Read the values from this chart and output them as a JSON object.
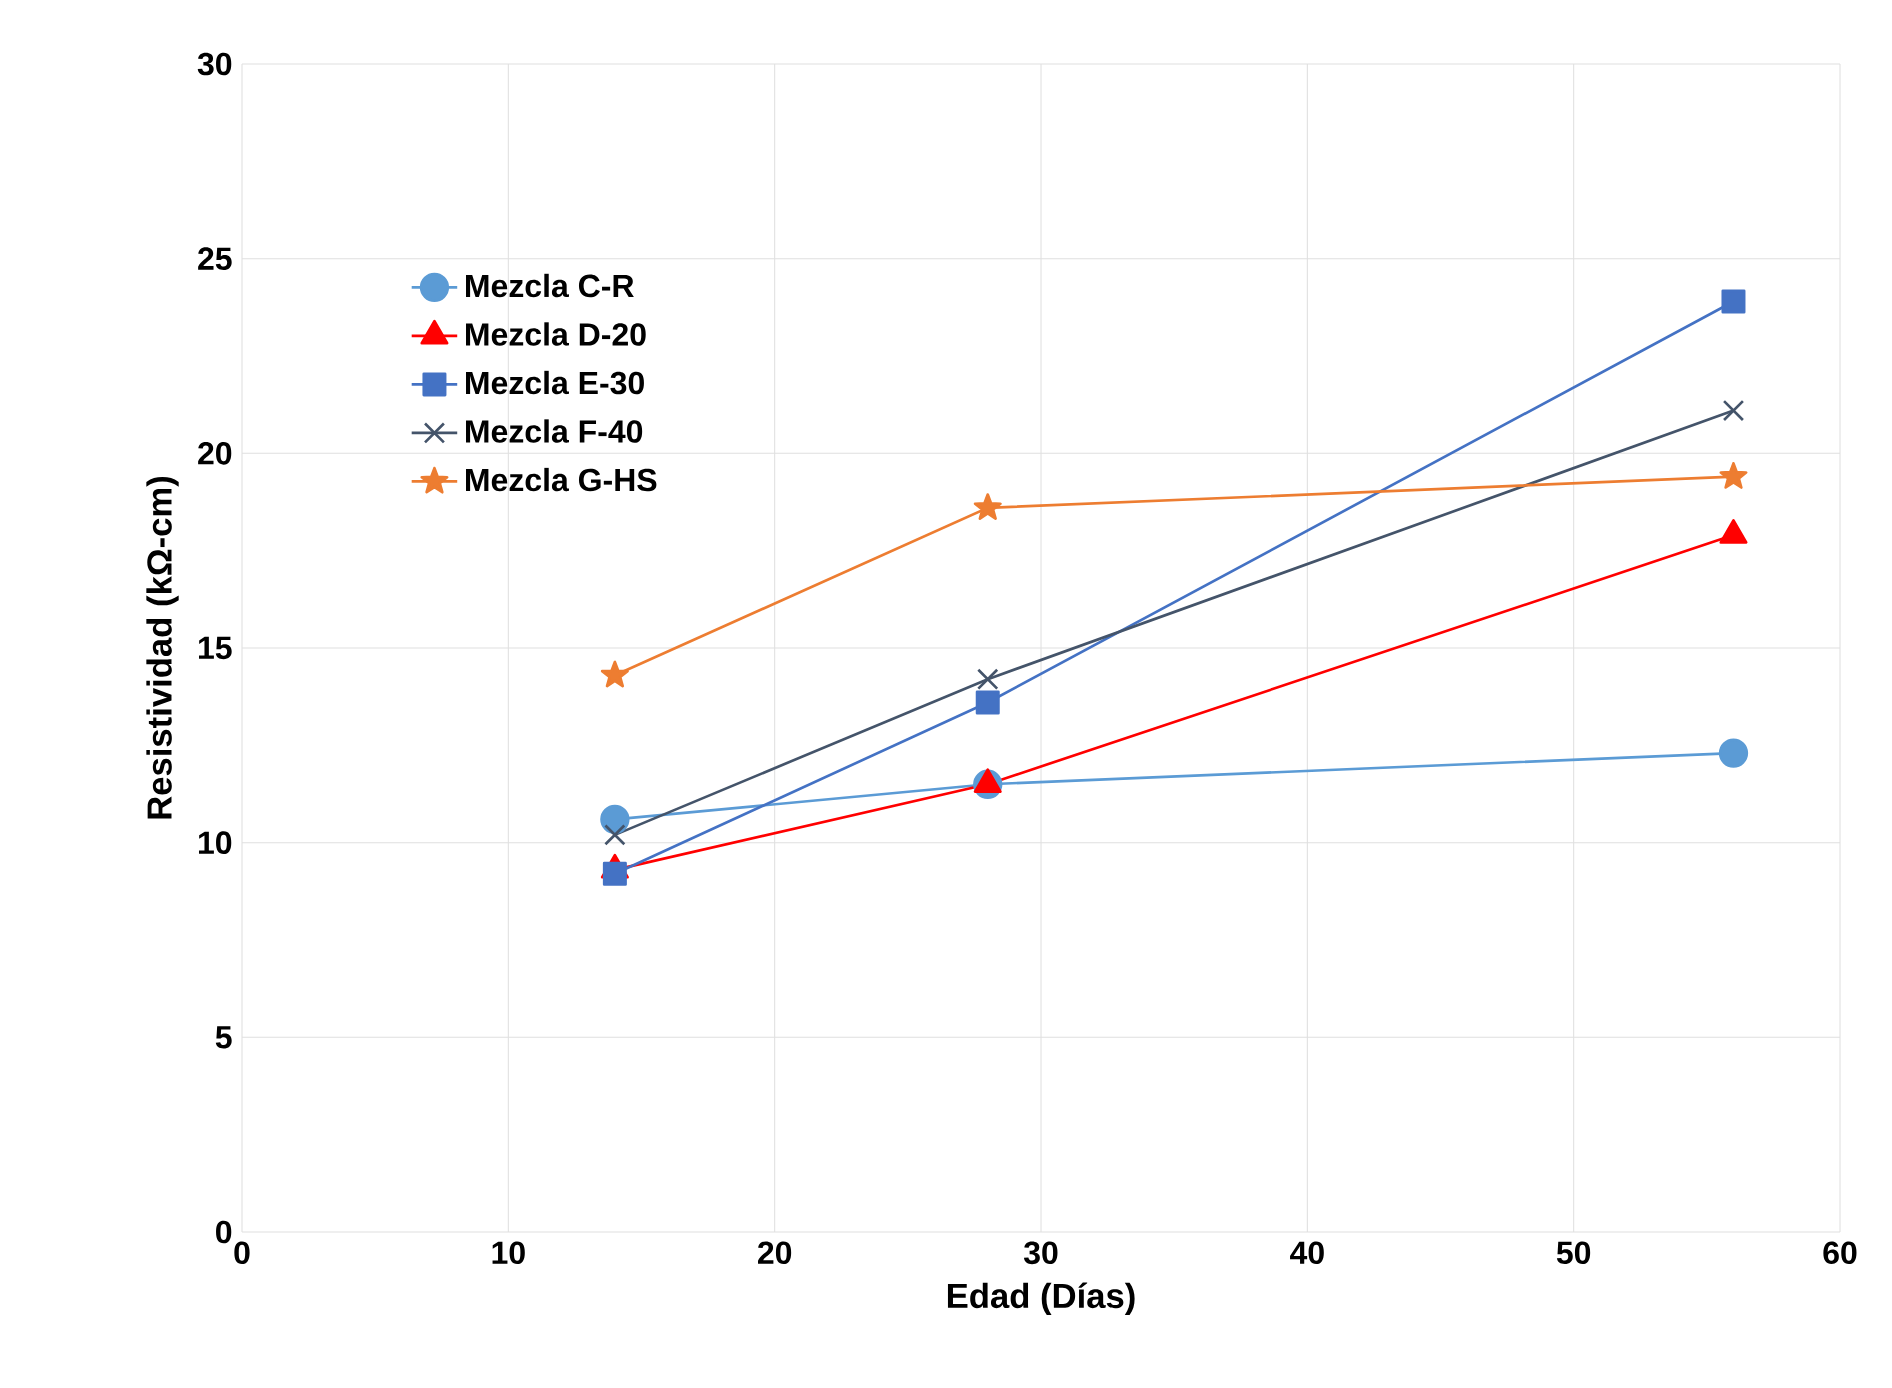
{
  "chart_data": {
    "type": "line",
    "xlabel": "Edad (Días)",
    "ylabel": "Resistividad (kΩ-cm)",
    "xlim": [
      0,
      60
    ],
    "xticks": [
      0,
      10,
      20,
      30,
      40,
      50,
      60
    ],
    "ylim": [
      0,
      30
    ],
    "yticks": [
      0,
      5,
      10,
      15,
      20,
      25,
      30
    ],
    "grid": true,
    "legend": "top left",
    "series": [
      {
        "name": "Mezcla C-R",
        "color": "#5b9bd5",
        "marker": "circle",
        "x": [
          14,
          28,
          56
        ],
        "values": [
          10.6,
          11.5,
          12.3
        ]
      },
      {
        "name": "Mezcla D-20",
        "color": "#ff0000",
        "marker": "triangle",
        "x": [
          14,
          28,
          56
        ],
        "values": [
          9.3,
          11.5,
          17.9
        ]
      },
      {
        "name": "Mezcla E-30",
        "color": "#4472c4",
        "marker": "square",
        "x": [
          14,
          28,
          56
        ],
        "values": [
          9.2,
          13.6,
          23.9
        ]
      },
      {
        "name": "Mezcla F-40",
        "color": "#44546a",
        "marker": "cross",
        "x": [
          14,
          28,
          56
        ],
        "values": [
          10.2,
          14.2,
          21.1
        ]
      },
      {
        "name": "Mezcla G-HS",
        "color": "#ed7d31",
        "marker": "star",
        "x": [
          14,
          28,
          56
        ],
        "values": [
          14.3,
          18.6,
          19.4
        ]
      }
    ]
  }
}
